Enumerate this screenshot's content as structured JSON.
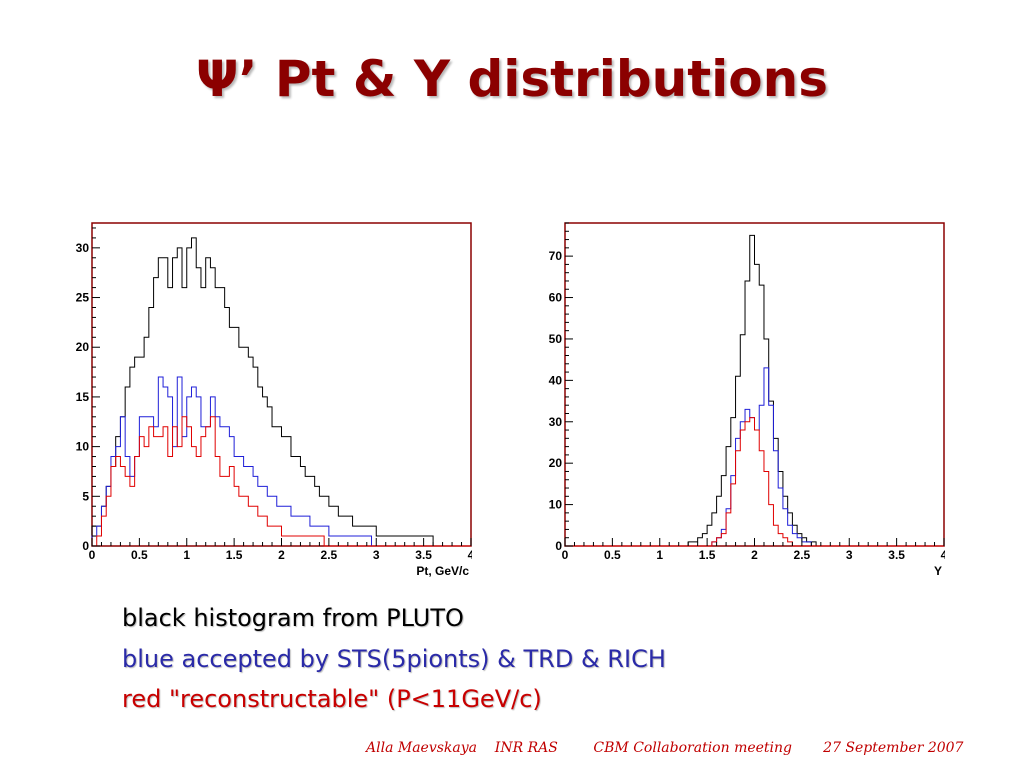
{
  "slide": {
    "title": "Ψ’ Pt & Y distributions",
    "legend": {
      "black": "black histogram from PLUTO",
      "blue": "blue accepted by STS(5pionts) & TRD & RICH",
      "red": "red \"reconstructable\" (P<11GeV/c)"
    },
    "footer": "Alla Maevskaya    INR RAS        CBM Collaboration meeting       27 September 2007"
  },
  "colors": {
    "frame": "#8b0000",
    "black": "#000000",
    "blue": "#1f1fd8",
    "red": "#e00000",
    "title": "#8b0000"
  },
  "chart_data": [
    {
      "type": "histogram",
      "xlabel": "Pt, GeV/c",
      "ylabel": "",
      "xlim": [
        0,
        4
      ],
      "ylim": [
        0,
        32.5
      ],
      "xticks": [
        "0",
        "0.5",
        "1",
        "1.5",
        "2",
        "2.5",
        "3",
        "3.5",
        "4"
      ],
      "yticks": [
        "0",
        "5",
        "10",
        "15",
        "20",
        "25",
        "30"
      ],
      "grid": false,
      "bin_width": 0.05,
      "series": [
        {
          "color": "black",
          "values": [
            2,
            2,
            4,
            6,
            8,
            11,
            13,
            16,
            18,
            19,
            19,
            21,
            24,
            27,
            29,
            29,
            26,
            29,
            30,
            26,
            30,
            31,
            28,
            26,
            29,
            28,
            26,
            26,
            24,
            22,
            22,
            20,
            20,
            19,
            18,
            16,
            15,
            14,
            12,
            12,
            11,
            11,
            9,
            9,
            8,
            7,
            7,
            6,
            5,
            5,
            4,
            4,
            3,
            3,
            3,
            2,
            2,
            2,
            2,
            2,
            1,
            1,
            1,
            1,
            1,
            1,
            1,
            1,
            1,
            1,
            1,
            1,
            0,
            0,
            0,
            0,
            0,
            0,
            0,
            0
          ]
        },
        {
          "color": "blue",
          "values": [
            1,
            2,
            4,
            6,
            9,
            10,
            13,
            9,
            7,
            9,
            13,
            13,
            13,
            12,
            17,
            16,
            15,
            10,
            17,
            11,
            15,
            16,
            15,
            12,
            12,
            15,
            13,
            12,
            12,
            11,
            9,
            9,
            8,
            8,
            7,
            6,
            6,
            5,
            5,
            4,
            4,
            4,
            3,
            3,
            3,
            3,
            2,
            2,
            2,
            2,
            1,
            1,
            1,
            1,
            1,
            1,
            1,
            1,
            1,
            0,
            0,
            0,
            0,
            0,
            0,
            0,
            0,
            0,
            0,
            0,
            0,
            0,
            0,
            0,
            0,
            0,
            0,
            0,
            0,
            0
          ]
        },
        {
          "color": "red",
          "values": [
            0,
            1,
            3,
            5,
            8,
            9,
            8,
            7,
            6,
            9,
            11,
            10,
            12,
            11,
            11,
            12,
            9,
            12,
            10,
            13,
            12,
            10,
            9,
            11,
            12,
            13,
            9,
            7,
            7,
            8,
            6,
            5,
            5,
            4,
            4,
            3,
            3,
            2,
            2,
            2,
            1,
            1,
            1,
            1,
            1,
            1,
            1,
            1,
            1,
            0,
            0,
            0,
            0,
            0,
            0,
            0,
            0,
            0,
            0,
            0,
            0,
            0,
            0,
            0,
            0,
            0,
            0,
            0,
            0,
            0,
            0,
            0,
            0,
            0,
            0,
            0,
            0,
            0,
            0,
            0
          ]
        }
      ]
    },
    {
      "type": "histogram",
      "xlabel": "Y",
      "ylabel": "",
      "xlim": [
        0,
        4
      ],
      "ylim": [
        0,
        78
      ],
      "xticks": [
        "0",
        "0.5",
        "1",
        "1.5",
        "2",
        "2.5",
        "3",
        "3.5",
        "4"
      ],
      "yticks": [
        "0",
        "10",
        "20",
        "30",
        "40",
        "50",
        "60",
        "70"
      ],
      "grid": false,
      "bin_width": 0.05,
      "series": [
        {
          "color": "black",
          "values": [
            0,
            0,
            0,
            0,
            0,
            0,
            0,
            0,
            0,
            0,
            0,
            0,
            0,
            0,
            0,
            0,
            0,
            0,
            0,
            0,
            0,
            0,
            0,
            0,
            0,
            0,
            1,
            1,
            2,
            3,
            5,
            8,
            12,
            17,
            24,
            31,
            41,
            51,
            64,
            75,
            68,
            63,
            50,
            35,
            26,
            18,
            12,
            8,
            5,
            3,
            2,
            1,
            1,
            0,
            0,
            0,
            0,
            0,
            0,
            0,
            0,
            0,
            0,
            0,
            0,
            0,
            0,
            0,
            0,
            0,
            0,
            0,
            0,
            0,
            0,
            0,
            0,
            0,
            0,
            0
          ]
        },
        {
          "color": "blue",
          "values": [
            0,
            0,
            0,
            0,
            0,
            0,
            0,
            0,
            0,
            0,
            0,
            0,
            0,
            0,
            0,
            0,
            0,
            0,
            0,
            0,
            0,
            0,
            0,
            0,
            0,
            0,
            0,
            0,
            0,
            0,
            0,
            1,
            2,
            4,
            9,
            17,
            26,
            30,
            33,
            31,
            28,
            34,
            43,
            34,
            23,
            14,
            9,
            5,
            3,
            2,
            1,
            1,
            0,
            0,
            0,
            0,
            0,
            0,
            0,
            0,
            0,
            0,
            0,
            0,
            0,
            0,
            0,
            0,
            0,
            0,
            0,
            0,
            0,
            0,
            0,
            0,
            0,
            0,
            0,
            0
          ]
        },
        {
          "color": "red",
          "values": [
            0,
            0,
            0,
            0,
            0,
            0,
            0,
            0,
            0,
            0,
            0,
            0,
            0,
            0,
            0,
            0,
            0,
            0,
            0,
            0,
            0,
            0,
            0,
            0,
            0,
            0,
            0,
            0,
            0,
            0,
            0,
            1,
            2,
            3,
            8,
            15,
            23,
            28,
            30,
            31,
            28,
            23,
            18,
            10,
            5,
            3,
            2,
            1,
            0,
            0,
            0,
            0,
            0,
            0,
            0,
            0,
            0,
            0,
            0,
            0,
            0,
            0,
            0,
            0,
            0,
            0,
            0,
            0,
            0,
            0,
            0,
            0,
            0,
            0,
            0,
            0,
            0,
            0,
            0,
            0
          ]
        }
      ]
    }
  ]
}
